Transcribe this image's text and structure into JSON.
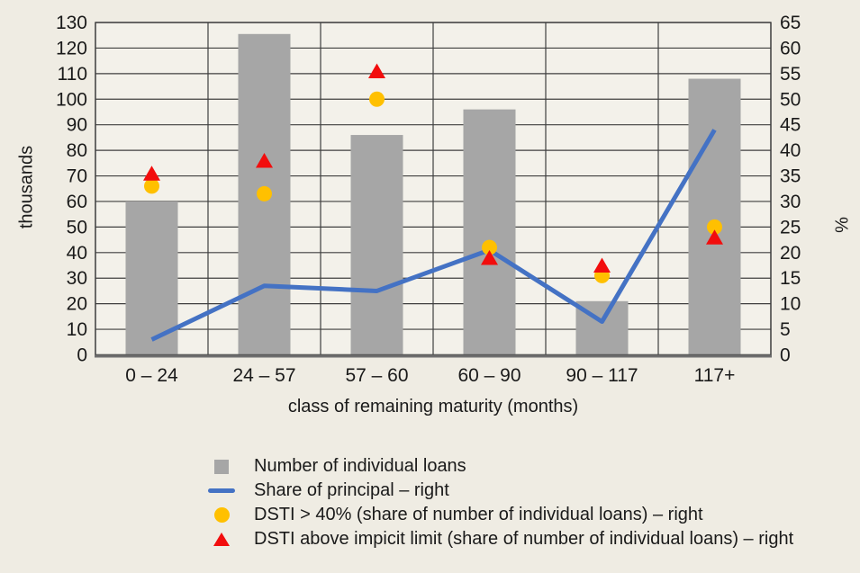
{
  "colors": {
    "background": "#EFECE3",
    "plot_background": "#F3F1EA",
    "grid": "#3F3F3F",
    "axis_line": "#6F6F6F",
    "bar": "#A6A6A6",
    "line": "#4472C4",
    "circle": "#FFC000",
    "triangle": "#F20D0D",
    "text": "#1A1A1A"
  },
  "chart_data": {
    "type": "bar",
    "subtype": "combo-bar-line-scatter",
    "categories": [
      "0 – 24",
      "24 – 57",
      "57 – 60",
      "60 – 90",
      "90 – 117",
      "117+"
    ],
    "xlabel": "class of remaining maturity (months)",
    "left_axis": {
      "label": "thousands",
      "min": 0,
      "max": 130,
      "ticks": [
        0,
        10,
        20,
        30,
        40,
        50,
        60,
        70,
        80,
        90,
        100,
        110,
        120,
        130
      ]
    },
    "right_axis": {
      "label": "%",
      "min": 0,
      "max": 65,
      "ticks": [
        0,
        5,
        10,
        15,
        20,
        25,
        30,
        35,
        40,
        45,
        50,
        55,
        60,
        65
      ]
    },
    "grid": "both",
    "legend_position": "bottom",
    "series": [
      {
        "name": "Number of individual loans",
        "type": "bar",
        "axis": "left",
        "values": [
          60,
          125.5,
          86,
          96,
          21,
          108
        ]
      },
      {
        "name": "Share of principal – right",
        "type": "line",
        "axis": "right",
        "values": [
          3,
          13.5,
          12.5,
          20.5,
          6.5,
          44
        ]
      },
      {
        "name": "DSTI > 40% (share of number of individual loans) – right",
        "type": "scatter-circle",
        "axis": "right",
        "values": [
          33,
          31.5,
          50,
          21,
          15.5,
          25
        ]
      },
      {
        "name": "DSTI above impicit limit (share of number of individual loans) – right",
        "type": "scatter-triangle",
        "axis": "right",
        "values": [
          35.5,
          38,
          55.5,
          19,
          17.5,
          23
        ]
      }
    ]
  }
}
